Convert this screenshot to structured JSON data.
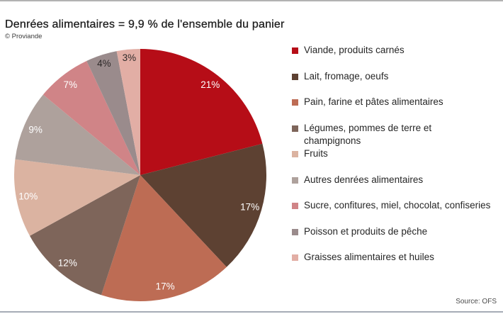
{
  "title": "Denrées alimentaires = 9,9 % de l'ensemble du panier",
  "copyright": "© Proviande",
  "source": "Source: OFS",
  "colors": {
    "top_rule": "#b2b2b2",
    "bottom_rule": "#a6acb6",
    "title_text": "#1e1e1e",
    "label_dark": "#2e2929",
    "label_light": "#ffffff"
  },
  "chart_data": {
    "type": "pie",
    "title": "Denrées alimentaires = 9,9 % de l'ensemble du panier",
    "start_angle_deg": 0,
    "direction": "clockwise",
    "center": [
      198,
      247
    ],
    "radius": 178,
    "label_radius_fraction": 0.905,
    "legend_position": "right",
    "slices": [
      {
        "label": "Viande, produits carnés",
        "value": 21,
        "pct_label": "21%",
        "color": "#b60d17",
        "label_color": "#ffffff"
      },
      {
        "label": "Lait, fromage, oeufs",
        "value": 17,
        "pct_label": "17%",
        "color": "#5d4132",
        "label_color": "#ffffff"
      },
      {
        "label": "Pain, farine et pâtes alimentaires",
        "value": 17,
        "pct_label": "17%",
        "color": "#bd6c54",
        "label_color": "#ffffff"
      },
      {
        "label": "Légumes, pommes de terre et champignons",
        "label_lines": [
          "Légumes, pommes de terre et",
          "champignons"
        ],
        "value": 12,
        "pct_label": "12%",
        "color": "#7e655a",
        "label_color": "#ffffff"
      },
      {
        "label": "Fruits",
        "value": 10,
        "pct_label": "10%",
        "color": "#dbb3a1",
        "label_color": "#ffffff"
      },
      {
        "label": "Autres denrées alimentaires",
        "value": 9,
        "pct_label": "9%",
        "color": "#aea19c",
        "label_color": "#ffffff"
      },
      {
        "label": "Sucre, confitures, miel, chocolat, confiseries",
        "value": 7,
        "pct_label": "7%",
        "color": "#d08487",
        "label_color": "#ffffff"
      },
      {
        "label": "Poisson et produits de pêche",
        "value": 4,
        "pct_label": "4%",
        "color": "#9a8b8c",
        "label_color": "#2e2929",
        "label_radius_fraction": 0.93
      },
      {
        "label": "Graisses alimentaires et huiles",
        "value": 3,
        "pct_label": "3%",
        "color": "#e2aea5",
        "label_color": "#2e2929",
        "label_radius_fraction": 0.935
      }
    ]
  }
}
